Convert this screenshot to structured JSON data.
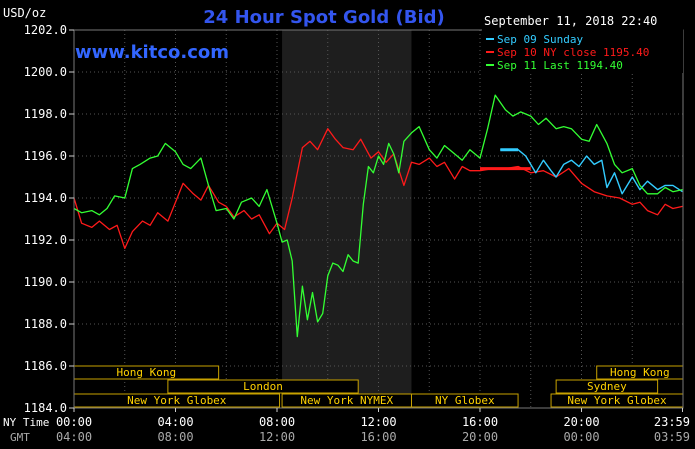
{
  "chart_data": {
    "type": "line",
    "title": "24 Hour Spot Gold (Bid)",
    "watermark": "www.kitco.com",
    "date_stamp": "September 11, 2018 22:40",
    "ylabel": "USD/oz",
    "ylim": [
      1184.0,
      1202.0
    ],
    "yticks": [
      "1184.0",
      "1186.0",
      "1188.0",
      "1190.0",
      "1192.0",
      "1194.0",
      "1196.0",
      "1198.0",
      "1200.0",
      "1202.0"
    ],
    "xlim": [
      0,
      24
    ],
    "x_ticks_ny": [
      "00:00",
      "04:00",
      "08:00",
      "12:00",
      "16:00",
      "20:00",
      "23:59"
    ],
    "x_ticks_gmt": [
      "04:00",
      "08:00",
      "12:00",
      "16:00",
      "20:00",
      "00:00",
      "03:59"
    ],
    "x_row_label_ny": "NY Time",
    "x_row_label_gmt": "GMT",
    "shaded_hours": [
      8.2,
      13.3
    ],
    "grid": true,
    "legend_position": "top-right",
    "series": [
      {
        "name": "Sep 09 Sunday",
        "color": "#33ccff",
        "x": [
          16.8,
          17.5,
          17.8,
          18.2,
          18.5,
          18.8,
          19.0,
          19.3,
          19.6,
          19.9,
          20.2,
          20.5,
          20.8,
          21.0,
          21.3,
          21.6,
          22.0,
          22.3,
          22.6,
          23.0,
          23.3,
          23.6,
          23.98
        ],
        "y": [
          1196.3,
          1196.3,
          1196.0,
          1195.2,
          1195.8,
          1195.3,
          1195.0,
          1195.6,
          1195.8,
          1195.5,
          1196.0,
          1195.6,
          1195.8,
          1194.5,
          1195.2,
          1194.2,
          1195.0,
          1194.4,
          1194.8,
          1194.4,
          1194.6,
          1194.6,
          1194.3
        ]
      },
      {
        "name": "Sep 10 NY close 1195.40",
        "color": "#ff1a1a",
        "x": [
          0,
          0.3,
          0.7,
          1.0,
          1.4,
          1.7,
          2.0,
          2.3,
          2.7,
          3.0,
          3.3,
          3.7,
          4.0,
          4.3,
          4.7,
          5.0,
          5.3,
          5.7,
          6.0,
          6.3,
          6.7,
          7.0,
          7.3,
          7.7,
          8.0,
          8.3,
          8.6,
          9.0,
          9.3,
          9.6,
          10.0,
          10.3,
          10.6,
          11.0,
          11.3,
          11.7,
          12.0,
          12.3,
          12.6,
          13.0,
          13.3,
          13.6,
          14.0,
          14.3,
          14.6,
          15.0,
          15.3,
          15.6,
          16.0,
          16.5,
          17.0,
          17.5,
          18.0,
          18.5,
          19.0,
          19.5,
          20.0,
          20.5,
          21.0,
          21.5,
          22.0,
          22.3,
          22.6,
          23.0,
          23.3,
          23.6,
          23.98
        ],
        "y": [
          1194.0,
          1192.8,
          1192.6,
          1192.9,
          1192.5,
          1192.7,
          1191.6,
          1192.4,
          1192.9,
          1192.7,
          1193.3,
          1192.9,
          1193.8,
          1194.7,
          1194.2,
          1193.9,
          1194.6,
          1193.8,
          1193.6,
          1193.1,
          1193.4,
          1193.0,
          1193.2,
          1192.3,
          1192.8,
          1192.5,
          1194.0,
          1196.4,
          1196.7,
          1196.3,
          1197.3,
          1196.8,
          1196.4,
          1196.3,
          1196.8,
          1195.9,
          1196.2,
          1195.7,
          1196.1,
          1194.6,
          1195.7,
          1195.6,
          1195.9,
          1195.5,
          1195.7,
          1194.9,
          1195.5,
          1195.3,
          1195.3,
          1195.4,
          1195.4,
          1195.5,
          1195.2,
          1195.3,
          1195.0,
          1195.4,
          1194.7,
          1194.3,
          1194.1,
          1194.0,
          1193.7,
          1193.8,
          1193.4,
          1193.2,
          1193.7,
          1193.5,
          1193.6
        ]
      },
      {
        "name": "Sep 11 Last 1194.40",
        "color": "#33ff33",
        "x": [
          0,
          0.3,
          0.7,
          1.0,
          1.3,
          1.6,
          2.0,
          2.3,
          2.6,
          3.0,
          3.3,
          3.6,
          4.0,
          4.3,
          4.6,
          5.0,
          5.3,
          5.6,
          6.0,
          6.3,
          6.6,
          7.0,
          7.3,
          7.6,
          8.0,
          8.2,
          8.4,
          8.6,
          8.8,
          9.0,
          9.2,
          9.4,
          9.6,
          9.8,
          10.0,
          10.2,
          10.4,
          10.6,
          10.8,
          11.0,
          11.2,
          11.4,
          11.6,
          11.8,
          12.0,
          12.2,
          12.4,
          12.6,
          12.8,
          13.0,
          13.3,
          13.6,
          14.0,
          14.3,
          14.6,
          15.0,
          15.3,
          15.6,
          16.0,
          16.3,
          16.6,
          17.0,
          17.3,
          17.6,
          18.0,
          18.3,
          18.6,
          19.0,
          19.3,
          19.6,
          20.0,
          20.3,
          20.6,
          21.0,
          21.3,
          21.6,
          22.0,
          22.3,
          22.6,
          23.0,
          23.3,
          23.6,
          23.98
        ],
        "y": [
          1193.5,
          1193.3,
          1193.4,
          1193.2,
          1193.5,
          1194.1,
          1194.0,
          1195.4,
          1195.6,
          1195.9,
          1196.0,
          1196.6,
          1196.2,
          1195.6,
          1195.4,
          1195.9,
          1194.6,
          1193.4,
          1193.5,
          1193.0,
          1193.8,
          1194.0,
          1193.6,
          1194.4,
          1192.8,
          1191.9,
          1192.0,
          1191.0,
          1187.4,
          1189.8,
          1188.2,
          1189.5,
          1188.1,
          1188.5,
          1190.3,
          1190.9,
          1190.8,
          1190.5,
          1191.3,
          1191.0,
          1190.9,
          1193.7,
          1195.5,
          1195.2,
          1196.0,
          1195.6,
          1196.6,
          1196.1,
          1195.2,
          1196.7,
          1197.1,
          1197.4,
          1196.3,
          1195.9,
          1196.5,
          1196.1,
          1195.8,
          1196.3,
          1195.9,
          1197.3,
          1198.9,
          1198.2,
          1197.9,
          1198.1,
          1197.9,
          1197.5,
          1197.8,
          1197.3,
          1197.4,
          1197.3,
          1196.8,
          1196.7,
          1197.5,
          1196.6,
          1195.6,
          1195.2,
          1195.4,
          1194.6,
          1194.2,
          1194.2,
          1194.5,
          1194.3,
          1194.4
        ]
      }
    ],
    "sessions": [
      {
        "label": "Hong Kong",
        "row": 0,
        "start": 0.0,
        "end": 5.7
      },
      {
        "label": "Hong Kong",
        "row": 0,
        "start": 20.6,
        "end": 24.0
      },
      {
        "label": "London",
        "row": 1,
        "start": 3.7,
        "end": 11.2
      },
      {
        "label": "Sydney",
        "row": 1,
        "start": 19.0,
        "end": 23.0
      },
      {
        "label": "New York Globex",
        "row": 2,
        "start": 0.0,
        "end": 8.1
      },
      {
        "label": "New York NYMEX",
        "row": 2,
        "start": 8.2,
        "end": 13.3
      },
      {
        "label": "NY Globex",
        "row": 2,
        "start": 13.3,
        "end": 17.5
      },
      {
        "label": "New York Globex",
        "row": 2,
        "start": 18.8,
        "end": 24.0
      }
    ]
  }
}
